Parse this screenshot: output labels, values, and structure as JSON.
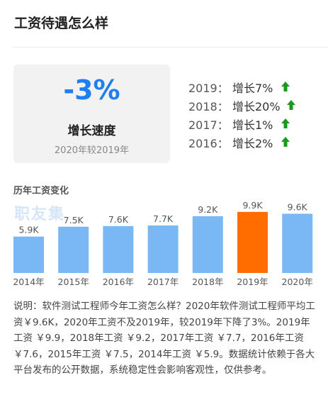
{
  "page": {
    "title": "工资待遇怎么样"
  },
  "summary": {
    "value": "-3%",
    "label": "增长速度",
    "note": "2020年较2019年"
  },
  "yearly_growth": [
    {
      "year": "2019：",
      "growth": "增长7%"
    },
    {
      "year": "2018：",
      "growth": "增长20%"
    },
    {
      "year": "2017：",
      "growth": "增长1%"
    },
    {
      "year": "2016：",
      "growth": "增长2%"
    }
  ],
  "chart_section": {
    "title": "历年工资变化",
    "watermark": "职友集"
  },
  "chart_data": {
    "type": "bar",
    "categories": [
      "2014年",
      "2015年",
      "2016年",
      "2017年",
      "2018年",
      "2019年",
      "2020年"
    ],
    "values": [
      5.9,
      7.5,
      7.6,
      7.7,
      9.2,
      9.9,
      9.6
    ],
    "data_labels": [
      "5.9K",
      "7.5K",
      "7.6K",
      "7.7K",
      "9.2K",
      "9.9K",
      "9.6K"
    ],
    "title": "历年工资变化",
    "highlight_index": 5,
    "colors": {
      "default": "#7ab8f5",
      "highlight": "#ff6d00"
    },
    "ylim": [
      0,
      10
    ]
  },
  "colors": {
    "accent": "#1f7ef2",
    "up_arrow": "#1a9a1a"
  },
  "description": "说明：软件测试工程师今年工资怎么样？2020年软件测试工程师平均工资￥9.6K，2020年工资不及2019年，较2019年下降了3%。2019年工资 ￥9.9，2018年工资 ￥9.2，2017年工资 ￥7.7，2016年工资 ￥7.6，2015年工资 ￥7.5，2014年工资 ￥5.9。数据统计依赖于各大平台发布的公开数据，系统稳定性会影响客观性，仅供参考。"
}
